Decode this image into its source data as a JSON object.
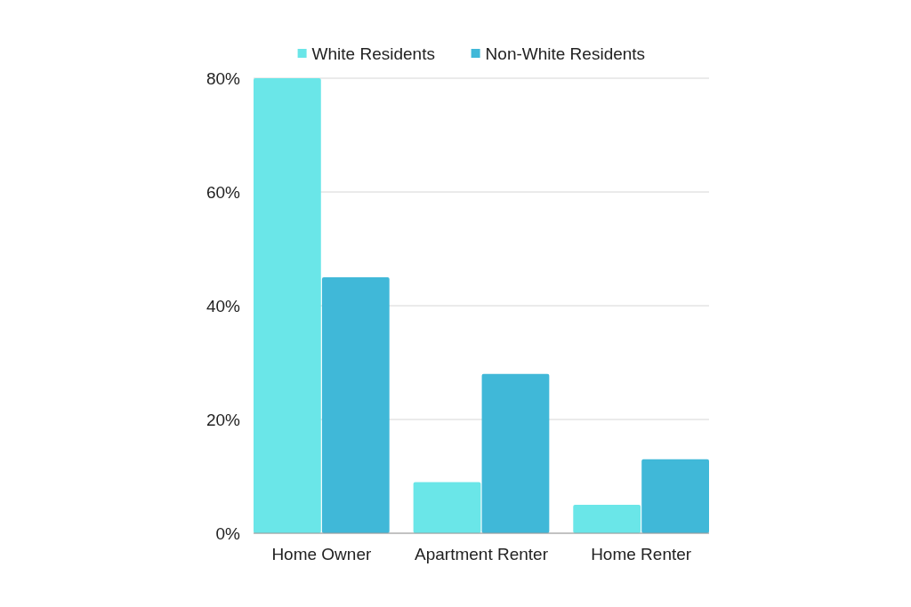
{
  "chart_data": {
    "type": "bar",
    "categories": [
      "Home Owner",
      "Apartment Renter",
      "Home Renter"
    ],
    "series": [
      {
        "name": "White Residents",
        "color": "#6ae6e8",
        "values": [
          80,
          9,
          5
        ]
      },
      {
        "name": "Non-White Residents",
        "color": "#40b8d8",
        "values": [
          45,
          28,
          13
        ]
      }
    ],
    "ylim": [
      0,
      80
    ],
    "yticks": [
      {
        "value": 0,
        "label": "0%"
      },
      {
        "value": 20,
        "label": "20%"
      },
      {
        "value": 40,
        "label": "40%"
      },
      {
        "value": 60,
        "label": "60%"
      },
      {
        "value": 80,
        "label": "80%"
      }
    ],
    "grid": "y",
    "legend": "top",
    "marker": "square"
  }
}
